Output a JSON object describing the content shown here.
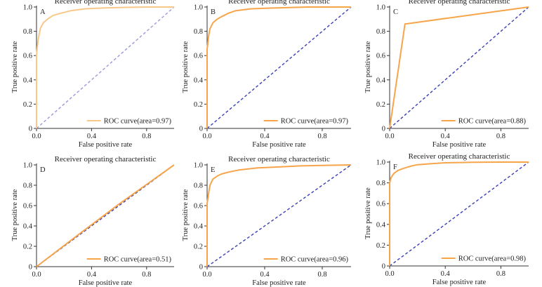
{
  "figure": {
    "colors": {
      "roc": "#f6a54b",
      "roc_light": "#f8c88a",
      "diag": "#3b3fb5",
      "diag_light": "#9a99dc",
      "axis": "#333333"
    }
  },
  "chart_data": [
    {
      "panel": "A",
      "type": "line",
      "title": "Receiver operating characteristic",
      "xlabel": "False positive rate",
      "ylabel": "True positive rate",
      "xlim": [
        0,
        1
      ],
      "ylim": [
        0,
        1
      ],
      "xticks": [
        "0.0",
        "0.4",
        "0.8"
      ],
      "yticks": [
        "0",
        "0.2",
        "0.4",
        "0.6",
        "0.8",
        "1.0"
      ],
      "legend": {
        "label": "ROC curve(area=0.97)",
        "position": "bottom-right"
      },
      "light": true,
      "series": [
        {
          "x": [
            0,
            0.0,
            0.01,
            0.02,
            0.03,
            0.05,
            0.08,
            0.12,
            0.18,
            0.25,
            0.35,
            0.5,
            0.65,
            0.8,
            1.0
          ],
          "y": [
            0,
            0.6,
            0.72,
            0.78,
            0.83,
            0.87,
            0.9,
            0.93,
            0.95,
            0.97,
            0.985,
            0.993,
            0.997,
            1.0,
            1.0
          ]
        }
      ]
    },
    {
      "panel": "B",
      "type": "line",
      "title": "Receiver operating characteristic",
      "xlabel": "False positive rate",
      "ylabel": "True positive rate",
      "xlim": [
        0,
        1
      ],
      "ylim": [
        0,
        1
      ],
      "xticks": [
        "0.0",
        "0.4",
        "0.8"
      ],
      "yticks": [
        "0",
        "0.2",
        "0.4",
        "0.6",
        "0.8",
        "1.0"
      ],
      "legend": {
        "label": "ROC curve(area=0.97)",
        "position": "bottom-right"
      },
      "light": false,
      "series": [
        {
          "x": [
            0,
            0.0,
            0.01,
            0.02,
            0.04,
            0.07,
            0.1,
            0.15,
            0.2,
            0.3,
            0.4,
            0.55,
            0.7,
            0.85,
            1.0
          ],
          "y": [
            0,
            0.65,
            0.76,
            0.82,
            0.87,
            0.9,
            0.92,
            0.95,
            0.97,
            0.985,
            0.99,
            0.995,
            1.0,
            1.0,
            1.0
          ]
        }
      ]
    },
    {
      "panel": "C",
      "type": "line",
      "title": "Receiver operating characteristic",
      "xlabel": "False positive rate",
      "ylabel": "True positive rate",
      "xlim": [
        0,
        1
      ],
      "ylim": [
        0,
        1
      ],
      "xticks": [
        "0.0",
        "0.4",
        "0.8"
      ],
      "yticks": [
        "0",
        "0.2",
        "0.4",
        "0.6",
        "0.8",
        "1.0"
      ],
      "legend": {
        "label": "ROC curve(area=0.88)",
        "position": "bottom-right"
      },
      "light": false,
      "series": [
        {
          "x": [
            0,
            0.11,
            1.0
          ],
          "y": [
            0,
            0.86,
            1.0
          ]
        }
      ]
    },
    {
      "panel": "D",
      "type": "line",
      "title": "Receiver operating characteristic",
      "xlabel": "False positive rate",
      "ylabel": "True positive rate",
      "xlim": [
        0,
        1
      ],
      "ylim": [
        0,
        1
      ],
      "xticks": [
        "0.0",
        "0.4",
        "0.8"
      ],
      "yticks": [
        "0",
        "0.2",
        "0.4",
        "0.6",
        "0.8",
        "1.0"
      ],
      "legend": {
        "label": "ROC curve(area=0.51)",
        "position": "bottom-right"
      },
      "light": false,
      "series": [
        {
          "x": [
            0,
            0.3,
            0.6,
            1.0
          ],
          "y": [
            0,
            0.31,
            0.615,
            1.0
          ]
        }
      ]
    },
    {
      "panel": "E",
      "type": "line",
      "title": "Receiver operating characteristic",
      "xlabel": "False positive rate",
      "ylabel": "True positive rate",
      "xlim": [
        0,
        1
      ],
      "ylim": [
        0,
        1
      ],
      "xticks": [
        "0.0",
        "0.4",
        "0.8"
      ],
      "yticks": [
        "0",
        "0.2",
        "0.4",
        "0.6",
        "0.8",
        "1.0"
      ],
      "legend": {
        "label": "ROC curve(area=0.96)",
        "position": "bottom-right"
      },
      "light": false,
      "series": [
        {
          "x": [
            0,
            0.0,
            0.01,
            0.02,
            0.04,
            0.07,
            0.1,
            0.15,
            0.22,
            0.35,
            0.5,
            0.65,
            0.8,
            1.0
          ],
          "y": [
            0,
            0.62,
            0.72,
            0.8,
            0.86,
            0.89,
            0.91,
            0.93,
            0.95,
            0.97,
            0.98,
            0.99,
            0.995,
            1.0
          ]
        }
      ]
    },
    {
      "panel": "F",
      "type": "line",
      "title": "Receiver operating characteristic",
      "xlabel": "False positive rate",
      "ylabel": "True positive rate",
      "xlim": [
        0,
        1
      ],
      "ylim": [
        0,
        1
      ],
      "xticks": [
        "0.0",
        "0.4",
        "0.8"
      ],
      "yticks": [
        "0",
        "0.2",
        "0.4",
        "0.6",
        "0.8",
        "1.0"
      ],
      "legend": {
        "label": "ROC curve(area=0.98)",
        "position": "bottom-right"
      },
      "light": false,
      "series": [
        {
          "x": [
            0,
            0.0,
            0.01,
            0.03,
            0.06,
            0.1,
            0.15,
            0.2,
            0.3,
            0.4,
            0.6,
            0.8,
            1.0
          ],
          "y": [
            0,
            0.8,
            0.85,
            0.89,
            0.92,
            0.94,
            0.96,
            0.975,
            0.985,
            0.993,
            0.998,
            1.0,
            1.0
          ]
        }
      ]
    }
  ]
}
